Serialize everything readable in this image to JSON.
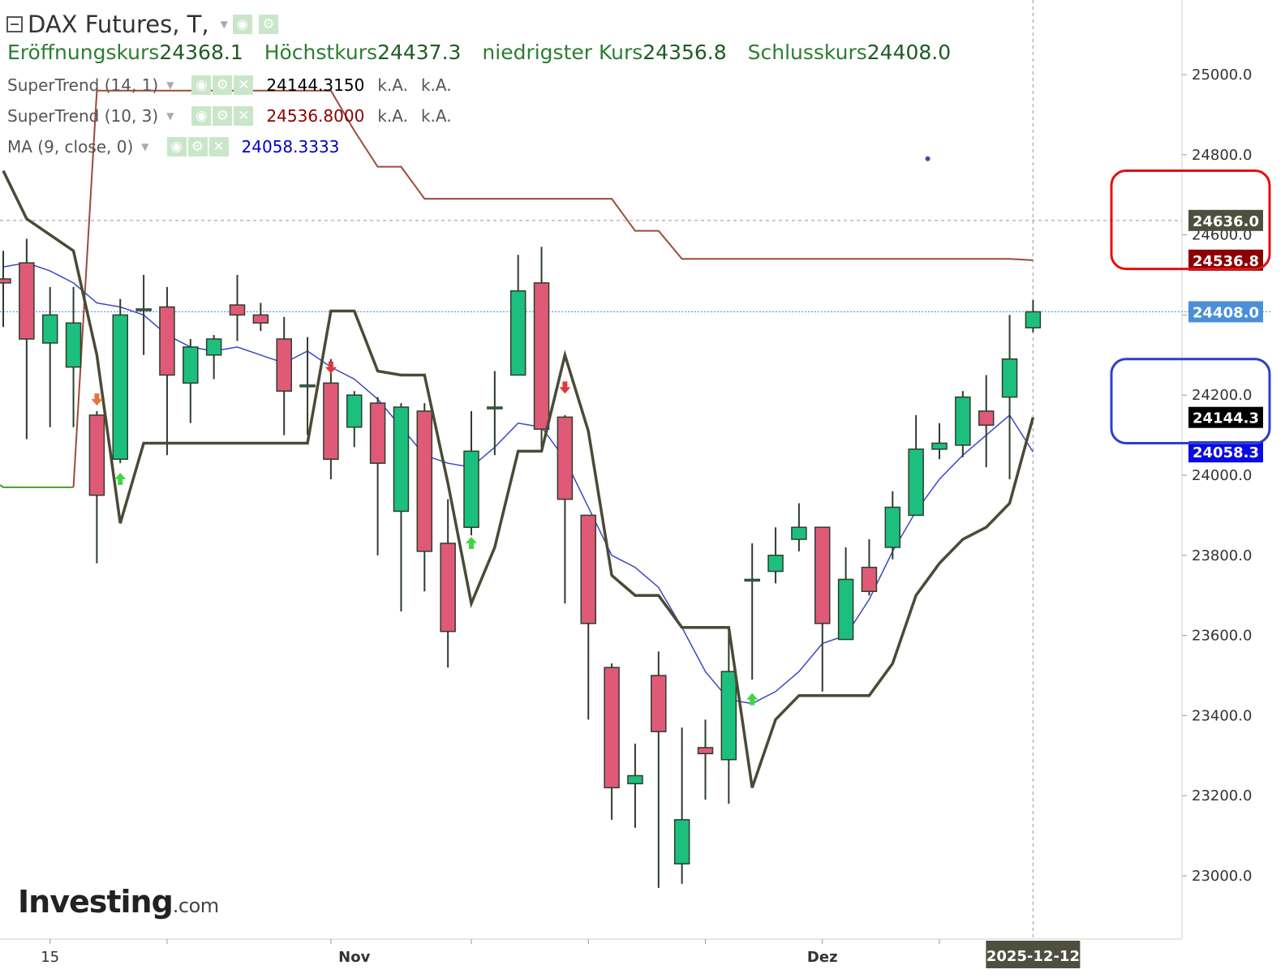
{
  "header": {
    "title": "DAX Futures, T,",
    "ohlc": [
      {
        "label": "Eröffnungskurs",
        "value": "24368.1"
      },
      {
        "label": "Höchstkurs",
        "value": "24437.3"
      },
      {
        "label": "niedrigster Kurs",
        "value": "24356.8"
      },
      {
        "label": "Schlusskurs",
        "value": "24408.0"
      }
    ],
    "indicators": [
      {
        "name": "SuperTrend (14, 1)",
        "value": "24144.3150",
        "na1": "k.A.",
        "na2": "k.A.",
        "color": "#000000"
      },
      {
        "name": "SuperTrend (10, 3)",
        "value": "24536.8000",
        "na1": "k.A.",
        "na2": "k.A.",
        "color": "#8b0000"
      },
      {
        "name": "MA (9, close, 0)",
        "value": "24058.3333",
        "color": "#0000cc"
      }
    ]
  },
  "logo": {
    "main": "Investing",
    "suffix": ".com"
  },
  "colors": {
    "up": "#1dbf7e",
    "down": "#e05a77",
    "st14": "#4a4a36",
    "st10": "#9e4a3a",
    "ma": "#3b47c6",
    "st_green": "#4a9e2a"
  },
  "chart_data": {
    "type": "candlestick",
    "title": "DAX Futures, T,",
    "ylim": [
      22850,
      25150
    ],
    "y_ticks": [
      "23000.0",
      "23200.0",
      "23400.0",
      "23600.0",
      "23800.0",
      "24000.0",
      "24200.0",
      "24400.0",
      "24600.0",
      "24800.0",
      "25000.0"
    ],
    "x_ticks": [
      "15",
      "Nov",
      "Dez"
    ],
    "current_date_label": "2025-12-12",
    "price_tags": [
      {
        "label": "24636.0",
        "value": 24636,
        "bg": "#4f4f3f"
      },
      {
        "label": "24536.8",
        "value": 24536.8,
        "bg": "#8b0000"
      },
      {
        "label": "24408.0",
        "value": 24408,
        "bg": "#4a8fd8"
      },
      {
        "label": "24144.3",
        "value": 24144.3,
        "bg": "#000000"
      },
      {
        "label": "24058.3",
        "value": 24058.3,
        "bg": "#0a0ae6"
      }
    ],
    "last_close": 24408.0,
    "crosshair_price": 24636.0,
    "candles": [
      {
        "o": 24490,
        "h": 24560,
        "l": 24370,
        "c": 24480
      },
      {
        "o": 24530,
        "h": 24590,
        "l": 24090,
        "c": 24340
      },
      {
        "o": 24330,
        "h": 24470,
        "l": 24120,
        "c": 24400
      },
      {
        "o": 24270,
        "h": 24470,
        "l": 24120,
        "c": 24380
      },
      {
        "o": 24150,
        "h": 24160,
        "l": 23780,
        "c": 23950
      },
      {
        "o": 24040,
        "h": 24440,
        "l": 24030,
        "c": 24400
      },
      {
        "o": 24415,
        "h": 24500,
        "l": 24300,
        "c": 24415
      },
      {
        "o": 24420,
        "h": 24470,
        "l": 24050,
        "c": 24250
      },
      {
        "o": 24230,
        "h": 24340,
        "l": 24130,
        "c": 24320
      },
      {
        "o": 24300,
        "h": 24350,
        "l": 24240,
        "c": 24340
      },
      {
        "o": 24425,
        "h": 24500,
        "l": 24335,
        "c": 24400
      },
      {
        "o": 24400,
        "h": 24430,
        "l": 24360,
        "c": 24380
      },
      {
        "o": 24340,
        "h": 24395,
        "l": 24100,
        "c": 24210
      },
      {
        "o": 24225,
        "h": 24345,
        "l": 24100,
        "c": 24225
      },
      {
        "o": 24230,
        "h": 24290,
        "l": 23990,
        "c": 24040
      },
      {
        "o": 24120,
        "h": 24210,
        "l": 24070,
        "c": 24200
      },
      {
        "o": 24180,
        "h": 24195,
        "l": 23800,
        "c": 24030
      },
      {
        "o": 23910,
        "h": 24180,
        "l": 23660,
        "c": 24170
      },
      {
        "o": 24160,
        "h": 24180,
        "l": 23710,
        "c": 23810
      },
      {
        "o": 23830,
        "h": 23940,
        "l": 23520,
        "c": 23610
      },
      {
        "o": 23870,
        "h": 24160,
        "l": 23850,
        "c": 24060
      },
      {
        "o": 24170,
        "h": 24260,
        "l": 24050,
        "c": 24170
      },
      {
        "o": 24250,
        "h": 24550,
        "l": 24250,
        "c": 24460
      },
      {
        "o": 24480,
        "h": 24570,
        "l": 24060,
        "c": 24115
      },
      {
        "o": 24145,
        "h": 24150,
        "l": 23680,
        "c": 23940
      },
      {
        "o": 23900,
        "h": 23900,
        "l": 23390,
        "c": 23630
      },
      {
        "o": 23520,
        "h": 23530,
        "l": 23140,
        "c": 23220
      },
      {
        "o": 23230,
        "h": 23330,
        "l": 23120,
        "c": 23250
      },
      {
        "o": 23500,
        "h": 23560,
        "l": 22970,
        "c": 23360
      },
      {
        "o": 23030,
        "h": 23370,
        "l": 22980,
        "c": 23140
      },
      {
        "o": 23320,
        "h": 23390,
        "l": 23190,
        "c": 23305
      },
      {
        "o": 23290,
        "h": 23620,
        "l": 23180,
        "c": 23510
      },
      {
        "o": 23740,
        "h": 23830,
        "l": 23490,
        "c": 23740
      },
      {
        "o": 23760,
        "h": 23870,
        "l": 23730,
        "c": 23800
      },
      {
        "o": 23840,
        "h": 23930,
        "l": 23810,
        "c": 23870
      },
      {
        "o": 23870,
        "h": 23870,
        "l": 23460,
        "c": 23630
      },
      {
        "o": 23590,
        "h": 23820,
        "l": 23590,
        "c": 23740
      },
      {
        "o": 23770,
        "h": 23840,
        "l": 23700,
        "c": 23710
      },
      {
        "o": 23820,
        "h": 23960,
        "l": 23790,
        "c": 23920
      },
      {
        "o": 23900,
        "h": 24150,
        "l": 23900,
        "c": 24065
      },
      {
        "o": 24065,
        "h": 24130,
        "l": 24040,
        "c": 24080
      },
      {
        "o": 24075,
        "h": 24210,
        "l": 24045,
        "c": 24195
      },
      {
        "o": 24160,
        "h": 24250,
        "l": 24020,
        "c": 24125
      },
      {
        "o": 24195,
        "h": 24400,
        "l": 23990,
        "c": 24290
      },
      {
        "o": 24368.1,
        "h": 24437.3,
        "l": 24356.8,
        "c": 24408.0
      }
    ],
    "series": [
      {
        "name": "SuperTrend (14, 1)",
        "values": [
          24760,
          24640,
          24600,
          24560,
          24300,
          23880,
          24080,
          24080,
          24080,
          24080,
          24080,
          24080,
          24080,
          24080,
          24410,
          24410,
          24260,
          24250,
          24250,
          23980,
          23680,
          23820,
          24060,
          24060,
          24300,
          24110,
          23750,
          23700,
          23700,
          23620,
          23620,
          23620,
          23220,
          23390,
          23450,
          23450,
          23450,
          23450,
          23530,
          23700,
          23780,
          23840,
          23870,
          23930,
          24144.3
        ]
      },
      {
        "name": "SuperTrend (10, 3)",
        "values": [
          23970,
          23970,
          23970,
          23970,
          24960,
          24960,
          24960,
          24960,
          24960,
          24960,
          24960,
          24960,
          24960,
          24960,
          24960,
          24860,
          24770,
          24770,
          24690,
          24690,
          24690,
          24690,
          24690,
          24690,
          24690,
          24690,
          24690,
          24610,
          24610,
          24540,
          24540,
          24540,
          24540,
          24540,
          24540,
          24540,
          24540,
          24540,
          24540,
          24540,
          24540,
          24540,
          24540,
          24540,
          24536.8
        ]
      },
      {
        "name": "MA (9, close, 0)",
        "values": [
          24520,
          24530,
          24510,
          24480,
          24430,
          24420,
          24400,
          24350,
          24320,
          24310,
          24320,
          24300,
          24280,
          24310,
          24270,
          24240,
          24190,
          24120,
          24050,
          24030,
          24020,
          24070,
          24130,
          24120,
          24040,
          23920,
          23800,
          23770,
          23720,
          23620,
          23510,
          23440,
          23430,
          23460,
          23510,
          23580,
          23600,
          23690,
          23810,
          23910,
          23990,
          24050,
          24100,
          24150,
          24058.3
        ]
      }
    ],
    "signals": [
      {
        "index": 4,
        "dir": "down",
        "price": 24190,
        "color": "#e8733a"
      },
      {
        "index": 5,
        "dir": "up",
        "price": 23990,
        "color": "#3fd63f"
      },
      {
        "index": 14,
        "dir": "down",
        "price": 24270,
        "color": "#e0383c"
      },
      {
        "index": 20,
        "dir": "up",
        "price": 23830,
        "color": "#3fd63f"
      },
      {
        "index": 24,
        "dir": "down",
        "price": 24220,
        "color": "#e0383c"
      },
      {
        "index": 32,
        "dir": "up",
        "price": 23440,
        "color": "#3fd63f"
      }
    ],
    "marker": {
      "index": 39.5,
      "value": 24790,
      "color": "#3b47c6"
    },
    "highlights": [
      {
        "color": "#e31010",
        "y_from": 24760,
        "y_to": 24515
      },
      {
        "color": "#2e3fc8",
        "y_from": 24290,
        "y_to": 24080
      }
    ]
  }
}
